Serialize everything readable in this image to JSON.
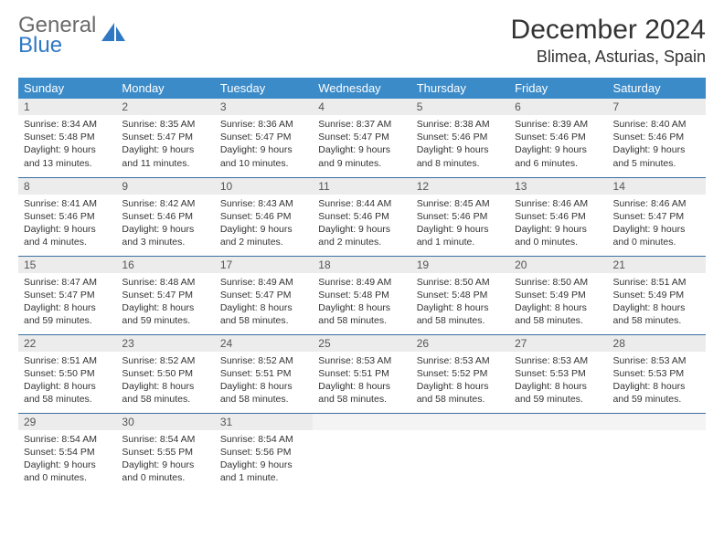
{
  "brand": {
    "word1": "General",
    "word2": "Blue"
  },
  "title": "December 2024",
  "location": "Blimea, Asturias, Spain",
  "colors": {
    "header_bg": "#3b8bc9",
    "row_divider": "#3b6fa0",
    "daynum_bg": "#ececec",
    "brand_gray": "#6a6a6a",
    "brand_blue": "#2f78c4"
  },
  "weekdays": [
    "Sunday",
    "Monday",
    "Tuesday",
    "Wednesday",
    "Thursday",
    "Friday",
    "Saturday"
  ],
  "weeks": [
    [
      {
        "n": "1",
        "sr": "Sunrise: 8:34 AM",
        "ss": "Sunset: 5:48 PM",
        "dl": "Daylight: 9 hours and 13 minutes."
      },
      {
        "n": "2",
        "sr": "Sunrise: 8:35 AM",
        "ss": "Sunset: 5:47 PM",
        "dl": "Daylight: 9 hours and 11 minutes."
      },
      {
        "n": "3",
        "sr": "Sunrise: 8:36 AM",
        "ss": "Sunset: 5:47 PM",
        "dl": "Daylight: 9 hours and 10 minutes."
      },
      {
        "n": "4",
        "sr": "Sunrise: 8:37 AM",
        "ss": "Sunset: 5:47 PM",
        "dl": "Daylight: 9 hours and 9 minutes."
      },
      {
        "n": "5",
        "sr": "Sunrise: 8:38 AM",
        "ss": "Sunset: 5:46 PM",
        "dl": "Daylight: 9 hours and 8 minutes."
      },
      {
        "n": "6",
        "sr": "Sunrise: 8:39 AM",
        "ss": "Sunset: 5:46 PM",
        "dl": "Daylight: 9 hours and 6 minutes."
      },
      {
        "n": "7",
        "sr": "Sunrise: 8:40 AM",
        "ss": "Sunset: 5:46 PM",
        "dl": "Daylight: 9 hours and 5 minutes."
      }
    ],
    [
      {
        "n": "8",
        "sr": "Sunrise: 8:41 AM",
        "ss": "Sunset: 5:46 PM",
        "dl": "Daylight: 9 hours and 4 minutes."
      },
      {
        "n": "9",
        "sr": "Sunrise: 8:42 AM",
        "ss": "Sunset: 5:46 PM",
        "dl": "Daylight: 9 hours and 3 minutes."
      },
      {
        "n": "10",
        "sr": "Sunrise: 8:43 AM",
        "ss": "Sunset: 5:46 PM",
        "dl": "Daylight: 9 hours and 2 minutes."
      },
      {
        "n": "11",
        "sr": "Sunrise: 8:44 AM",
        "ss": "Sunset: 5:46 PM",
        "dl": "Daylight: 9 hours and 2 minutes."
      },
      {
        "n": "12",
        "sr": "Sunrise: 8:45 AM",
        "ss": "Sunset: 5:46 PM",
        "dl": "Daylight: 9 hours and 1 minute."
      },
      {
        "n": "13",
        "sr": "Sunrise: 8:46 AM",
        "ss": "Sunset: 5:46 PM",
        "dl": "Daylight: 9 hours and 0 minutes."
      },
      {
        "n": "14",
        "sr": "Sunrise: 8:46 AM",
        "ss": "Sunset: 5:47 PM",
        "dl": "Daylight: 9 hours and 0 minutes."
      }
    ],
    [
      {
        "n": "15",
        "sr": "Sunrise: 8:47 AM",
        "ss": "Sunset: 5:47 PM",
        "dl": "Daylight: 8 hours and 59 minutes."
      },
      {
        "n": "16",
        "sr": "Sunrise: 8:48 AM",
        "ss": "Sunset: 5:47 PM",
        "dl": "Daylight: 8 hours and 59 minutes."
      },
      {
        "n": "17",
        "sr": "Sunrise: 8:49 AM",
        "ss": "Sunset: 5:47 PM",
        "dl": "Daylight: 8 hours and 58 minutes."
      },
      {
        "n": "18",
        "sr": "Sunrise: 8:49 AM",
        "ss": "Sunset: 5:48 PM",
        "dl": "Daylight: 8 hours and 58 minutes."
      },
      {
        "n": "19",
        "sr": "Sunrise: 8:50 AM",
        "ss": "Sunset: 5:48 PM",
        "dl": "Daylight: 8 hours and 58 minutes."
      },
      {
        "n": "20",
        "sr": "Sunrise: 8:50 AM",
        "ss": "Sunset: 5:49 PM",
        "dl": "Daylight: 8 hours and 58 minutes."
      },
      {
        "n": "21",
        "sr": "Sunrise: 8:51 AM",
        "ss": "Sunset: 5:49 PM",
        "dl": "Daylight: 8 hours and 58 minutes."
      }
    ],
    [
      {
        "n": "22",
        "sr": "Sunrise: 8:51 AM",
        "ss": "Sunset: 5:50 PM",
        "dl": "Daylight: 8 hours and 58 minutes."
      },
      {
        "n": "23",
        "sr": "Sunrise: 8:52 AM",
        "ss": "Sunset: 5:50 PM",
        "dl": "Daylight: 8 hours and 58 minutes."
      },
      {
        "n": "24",
        "sr": "Sunrise: 8:52 AM",
        "ss": "Sunset: 5:51 PM",
        "dl": "Daylight: 8 hours and 58 minutes."
      },
      {
        "n": "25",
        "sr": "Sunrise: 8:53 AM",
        "ss": "Sunset: 5:51 PM",
        "dl": "Daylight: 8 hours and 58 minutes."
      },
      {
        "n": "26",
        "sr": "Sunrise: 8:53 AM",
        "ss": "Sunset: 5:52 PM",
        "dl": "Daylight: 8 hours and 58 minutes."
      },
      {
        "n": "27",
        "sr": "Sunrise: 8:53 AM",
        "ss": "Sunset: 5:53 PM",
        "dl": "Daylight: 8 hours and 59 minutes."
      },
      {
        "n": "28",
        "sr": "Sunrise: 8:53 AM",
        "ss": "Sunset: 5:53 PM",
        "dl": "Daylight: 8 hours and 59 minutes."
      }
    ],
    [
      {
        "n": "29",
        "sr": "Sunrise: 8:54 AM",
        "ss": "Sunset: 5:54 PM",
        "dl": "Daylight: 9 hours and 0 minutes."
      },
      {
        "n": "30",
        "sr": "Sunrise: 8:54 AM",
        "ss": "Sunset: 5:55 PM",
        "dl": "Daylight: 9 hours and 0 minutes."
      },
      {
        "n": "31",
        "sr": "Sunrise: 8:54 AM",
        "ss": "Sunset: 5:56 PM",
        "dl": "Daylight: 9 hours and 1 minute."
      },
      {
        "empty": true
      },
      {
        "empty": true
      },
      {
        "empty": true
      },
      {
        "empty": true
      }
    ]
  ]
}
